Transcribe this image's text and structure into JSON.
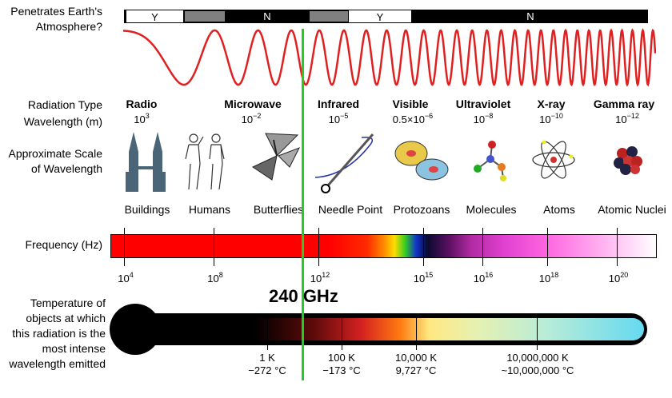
{
  "atmosphere": {
    "label_line1": "Penetrates Earth's",
    "label_line2": "Atmosphere?",
    "segments": [
      {
        "text": "Y",
        "color": "#ffffff"
      },
      {
        "text": "",
        "color": "#808080"
      },
      {
        "text": "N",
        "color": "#000000"
      },
      {
        "text": "",
        "color": "#808080"
      },
      {
        "text": "Y",
        "color": "#ffffff"
      },
      {
        "text": "N",
        "color": "#000000"
      }
    ]
  },
  "rows": {
    "radiation_type": "Radiation Type",
    "wavelength": "Wavelength (m)",
    "scale_line1": "Approximate Scale",
    "scale_line2": "of Wavelength",
    "frequency": "Frequency (Hz)",
    "temp_line1": "Temperature of",
    "temp_line2": "objects at which",
    "temp_line3": "this radiation is the",
    "temp_line4": "most intense",
    "temp_line5": "wavelength emitted"
  },
  "types": [
    {
      "name": "Radio",
      "wl_base": "10",
      "wl_exp": "3"
    },
    {
      "name": "Microwave",
      "wl_base": "10",
      "wl_exp": "−2"
    },
    {
      "name": "Infrared",
      "wl_base": "10",
      "wl_exp": "−5"
    },
    {
      "name": "Visible",
      "wl_base": "0.5×10",
      "wl_exp": "−6"
    },
    {
      "name": "Ultraviolet",
      "wl_base": "10",
      "wl_exp": "−8"
    },
    {
      "name": "X-ray",
      "wl_base": "10",
      "wl_exp": "−10"
    },
    {
      "name": "Gamma ray",
      "wl_base": "10",
      "wl_exp": "−12"
    }
  ],
  "scales": [
    "Buildings",
    "Humans",
    "Butterflies",
    "Needle Point",
    "Protozoans",
    "Molecules",
    "Atoms",
    "Atomic Nuclei"
  ],
  "frequency_ticks": [
    {
      "base": "10",
      "exp": "4"
    },
    {
      "base": "10",
      "exp": "8"
    },
    {
      "base": "10",
      "exp": "12"
    },
    {
      "base": "10",
      "exp": "15"
    },
    {
      "base": "10",
      "exp": "16"
    },
    {
      "base": "10",
      "exp": "18"
    },
    {
      "base": "10",
      "exp": "20"
    }
  ],
  "marker": {
    "label": "240 GHz",
    "color": "#22cc22"
  },
  "temperatures": [
    {
      "k": "1 K",
      "c": "−272 °C"
    },
    {
      "k": "100 K",
      "c": "−173 °C"
    },
    {
      "k": "10,000 K",
      "c": "9,727 °C"
    },
    {
      "k": "10,000,000 K",
      "c": "~10,000,000 °C"
    }
  ],
  "colors": {
    "wave": "#e02020",
    "frequency_low": "#ff0000",
    "frequency_high": "#ffffff",
    "thermometer_tip": "#66d9f0"
  }
}
